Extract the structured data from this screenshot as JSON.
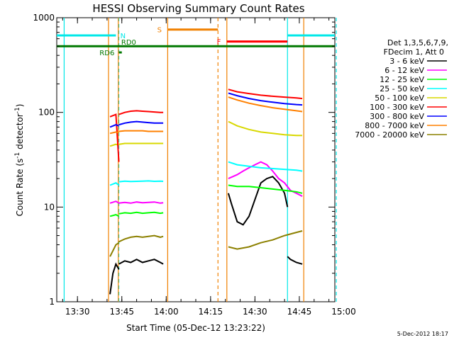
{
  "chart_data": {
    "type": "line",
    "title": "HESSI Observing Summary Count Rates",
    "xlabel": "Start Time (05-Dec-12 13:23:22)",
    "ylabel_main": "Count Rate (s",
    "ylabel_sup1": "-1",
    "ylabel_mid": " detector",
    "ylabel_sup2": "-1",
    "ylabel_end": ")",
    "yscale": "log",
    "ylim": [
      1,
      1000
    ],
    "xlim_minutes": [
      -37,
      57
    ],
    "x_ticks": [
      {
        "m": -30,
        "label": "13:30"
      },
      {
        "m": -15,
        "label": "13:45"
      },
      {
        "m": 0,
        "label": "14:00"
      },
      {
        "m": 15,
        "label": "14:15"
      },
      {
        "m": 30,
        "label": "14:30"
      },
      {
        "m": 45,
        "label": "14:45"
      },
      {
        "m": 60,
        "label": "15:00"
      }
    ],
    "y_ticks": [
      {
        "v": 1,
        "label": "1"
      },
      {
        "v": 10,
        "label": "10"
      },
      {
        "v": 100,
        "label": "100"
      },
      {
        "v": 1000,
        "label": "1000"
      }
    ],
    "legend": {
      "header1": "Det 1,3,5,6,7,9,",
      "header2": "FDecim 1, Att 0",
      "placement": "right"
    },
    "footer_timestamp": "5-Dec-2012 18:17",
    "colors": {
      "cyan": "#00e8e8",
      "orange": "#f08000",
      "green_flag": "#007800",
      "red": "#ff0000"
    },
    "series": [
      {
        "name": "3 - 6 keV",
        "color": "#000000",
        "segments": [
          {
            "x": [
              -19,
              -18,
              -17,
              -16
            ],
            "y": [
              1.2,
              2.0,
              2.5,
              2.2
            ]
          },
          {
            "x": [
              -16,
              -14,
              -12,
              -10,
              -8,
              -6,
              -4,
              -2,
              -1
            ],
            "y": [
              2.5,
              2.7,
              2.6,
              2.8,
              2.6,
              2.7,
              2.8,
              2.6,
              2.5
            ]
          },
          {
            "x": [
              21,
              22,
              24,
              26,
              28,
              30,
              32,
              34,
              36,
              38,
              40,
              41
            ],
            "y": [
              14,
              11,
              7,
              6.5,
              8,
              12,
              18,
              20,
              21,
              18,
              14,
              10
            ]
          },
          {
            "x": [
              41,
              42,
              44,
              46
            ],
            "y": [
              3,
              2.8,
              2.6,
              2.5
            ]
          }
        ]
      },
      {
        "name": "6 - 12 keV",
        "color": "#ff00ff",
        "segments": [
          {
            "x": [
              -19,
              -17,
              -16
            ],
            "y": [
              11,
              11.5,
              11
            ]
          },
          {
            "x": [
              -16,
              -14,
              -12,
              -10,
              -8,
              -6,
              -4,
              -2,
              -1
            ],
            "y": [
              11,
              11.2,
              11,
              11.3,
              11.1,
              11.2,
              11.3,
              11,
              11.1
            ]
          },
          {
            "x": [
              21,
              24,
              26,
              28,
              30,
              32,
              34,
              36,
              38,
              40,
              42,
              44,
              46
            ],
            "y": [
              20,
              22,
              24,
              26,
              28,
              30,
              28,
              24,
              20,
              18,
              15,
              14,
              13
            ]
          }
        ]
      },
      {
        "name": "12 - 25 keV",
        "color": "#00ff00",
        "segments": [
          {
            "x": [
              -19,
              -17,
              -16
            ],
            "y": [
              8,
              8.3,
              8
            ]
          },
          {
            "x": [
              -16,
              -14,
              -12,
              -10,
              -8,
              -6,
              -4,
              -2,
              -1
            ],
            "y": [
              8.5,
              8.7,
              8.6,
              8.8,
              8.6,
              8.7,
              8.8,
              8.6,
              8.7
            ]
          },
          {
            "x": [
              21,
              24,
              28,
              32,
              36,
              40,
              44,
              46
            ],
            "y": [
              17,
              16.5,
              16.5,
              16,
              15.5,
              15,
              14.5,
              14
            ]
          }
        ]
      },
      {
        "name": "25 - 50 keV",
        "color": "#00ffff",
        "segments": [
          {
            "x": [
              -19,
              -17,
              -16
            ],
            "y": [
              17,
              18,
              17
            ]
          },
          {
            "x": [
              -16,
              -14,
              -12,
              -10,
              -8,
              -6,
              -4,
              -2,
              -1
            ],
            "y": [
              18.5,
              18.8,
              18.6,
              18.7,
              18.8,
              18.9,
              18.7,
              18.8,
              18.7
            ]
          },
          {
            "x": [
              21,
              24,
              28,
              32,
              36,
              40,
              44,
              46
            ],
            "y": [
              30,
              28,
              27,
              26,
              25.5,
              25,
              24.5,
              24
            ]
          }
        ]
      },
      {
        "name": "50 - 100 keV",
        "color": "#d8d800",
        "segments": [
          {
            "x": [
              -19,
              -17,
              -16
            ],
            "y": [
              44,
              46,
              45
            ]
          },
          {
            "x": [
              -16,
              -14,
              -12,
              -10,
              -8,
              -6,
              -4,
              -2,
              -1
            ],
            "y": [
              46,
              47,
              47,
              47,
              47,
              47,
              47,
              47,
              47
            ]
          },
          {
            "x": [
              21,
              24,
              28,
              32,
              36,
              40,
              44,
              46
            ],
            "y": [
              80,
              72,
              66,
              62,
              60,
              58,
              57,
              57
            ]
          }
        ]
      },
      {
        "name": "100 - 300 keV",
        "color": "#ff0000",
        "segments": [
          {
            "x": [
              -19,
              -17,
              -16
            ],
            "y": [
              90,
              95,
              30
            ]
          },
          {
            "x": [
              -16,
              -14,
              -12,
              -10,
              -8,
              -6,
              -4,
              -2,
              -1
            ],
            "y": [
              95,
              100,
              103,
              104,
              103,
              102,
              101,
              100,
              100
            ]
          },
          {
            "x": [
              21,
              24,
              28,
              32,
              36,
              40,
              44,
              46
            ],
            "y": [
              175,
              165,
              158,
              152,
              148,
              145,
              142,
              140
            ]
          }
        ]
      },
      {
        "name": "300 - 800 keV",
        "color": "#0000ff",
        "segments": [
          {
            "x": [
              -19,
              -17,
              -16
            ],
            "y": [
              70,
              74,
              72
            ]
          },
          {
            "x": [
              -16,
              -14,
              -12,
              -10,
              -8,
              -6,
              -4,
              -2,
              -1
            ],
            "y": [
              74,
              77,
              79,
              80,
              79,
              78,
              77,
              77,
              77
            ]
          },
          {
            "x": [
              21,
              24,
              28,
              32,
              36,
              40,
              44,
              46
            ],
            "y": [
              160,
              150,
              140,
              133,
              128,
              124,
              121,
              120
            ]
          }
        ]
      },
      {
        "name": "800 - 7000 keV",
        "color": "#ff8000",
        "segments": [
          {
            "x": [
              -19,
              -17,
              -16
            ],
            "y": [
              60,
              62,
              61
            ]
          },
          {
            "x": [
              -16,
              -14,
              -12,
              -10,
              -8,
              -6,
              -4,
              -2,
              -1
            ],
            "y": [
              63,
              64,
              64,
              64,
              64,
              63,
              63,
              63,
              63
            ]
          },
          {
            "x": [
              21,
              24,
              28,
              32,
              36,
              40,
              44,
              46
            ],
            "y": [
              145,
              135,
              125,
              118,
              112,
              108,
              104,
              102
            ]
          }
        ]
      },
      {
        "name": "7000 - 20000 keV",
        "color": "#8c8000",
        "segments": [
          {
            "x": [
              -19,
              -17,
              -16
            ],
            "y": [
              3,
              4,
              4.2
            ]
          },
          {
            "x": [
              -16,
              -14,
              -12,
              -10,
              -8,
              -6,
              -4,
              -2,
              -1
            ],
            "y": [
              4.3,
              4.6,
              4.8,
              4.9,
              4.8,
              4.9,
              5.0,
              4.8,
              4.9
            ]
          },
          {
            "x": [
              21,
              24,
              28,
              32,
              36,
              40,
              44,
              46
            ],
            "y": [
              3.8,
              3.6,
              3.8,
              4.2,
              4.5,
              5.0,
              5.4,
              5.6
            ]
          }
        ]
      }
    ],
    "vertical_lines": [
      {
        "m": -34.5,
        "color": "#00e8e8",
        "style": "solid"
      },
      {
        "m": -16,
        "color": "#00e8e8",
        "style": "dashed"
      },
      {
        "m": 0.5,
        "color": "#f08000",
        "style": "solid"
      },
      {
        "m": 17.5,
        "color": "#f08000",
        "style": "dashed"
      },
      {
        "m": 41,
        "color": "#00e8e8",
        "style": "solid"
      },
      {
        "m": 57.5,
        "color": "#00e8e8",
        "style": "dashed"
      },
      {
        "m": -19.5,
        "color": "#f08000",
        "style": "solid"
      },
      {
        "m": -16.2,
        "color": "#f08000",
        "style": "solid"
      },
      {
        "m": 20.5,
        "color": "#f08000",
        "style": "solid"
      },
      {
        "m": 46.5,
        "color": "#f08000",
        "style": "solid"
      }
    ],
    "flag_bars": [
      {
        "label": "N",
        "color": "#00e8e8",
        "x0": -37,
        "x1": -17,
        "y": 650,
        "label_x": -15.5,
        "label_side": "right"
      },
      {
        "label": "",
        "color": "#00e8e8",
        "x0": 41,
        "x1": 57,
        "y": 650
      },
      {
        "label": "S",
        "color": "#f08000",
        "x0": 0.5,
        "x1": 17.5,
        "y": 750,
        "label_x": -1.5,
        "label_side": "left"
      },
      {
        "label": "F",
        "color": "#ff0000",
        "x0": 20.5,
        "x1": 41,
        "y": 560,
        "label_x": 18.5,
        "label_side": "left"
      },
      {
        "label": "",
        "color": "#007800",
        "x0": -37,
        "x1": 57,
        "y": 500
      },
      {
        "label": "RD6",
        "color": "#007800",
        "x0": -16,
        "x1": -15,
        "y": 430,
        "label_x": -17.5,
        "label_side": "left"
      }
    ],
    "text_labels": [
      {
        "text": "RD0",
        "color": "#007800",
        "x": -15.2,
        "y": 520
      }
    ]
  }
}
